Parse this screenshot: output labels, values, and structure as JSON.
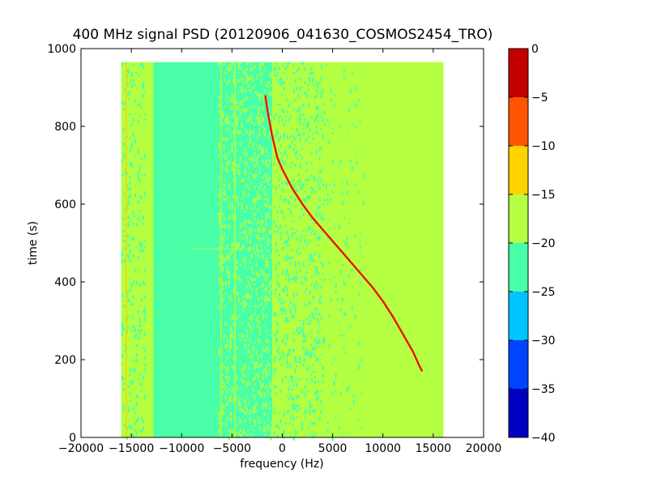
{
  "chart_data": {
    "type": "heatmap",
    "title": "400 MHz signal PSD (20120906_041630_COSMOS2454_TRO)",
    "xlabel": "frequency (Hz)",
    "ylabel": "time (s)",
    "xlim": [
      -20000,
      20000
    ],
    "ylim": [
      0,
      1000
    ],
    "xticks": [
      -20000,
      -15000,
      -10000,
      -5000,
      0,
      5000,
      10000,
      15000,
      20000
    ],
    "xtick_labels": [
      "−20000",
      "−15000",
      "−10000",
      "−5000",
      "0",
      "5000",
      "10000",
      "15000",
      "20000"
    ],
    "yticks": [
      0,
      200,
      400,
      600,
      800,
      1000
    ],
    "ytick_labels": [
      "0",
      "200",
      "400",
      "600",
      "800",
      "1000"
    ],
    "data_extent": {
      "x": [
        -16000,
        16000
      ],
      "y": [
        0,
        965
      ]
    },
    "background_level": -17.5,
    "regions": [
      {
        "x": [
          -16000,
          -13600
        ],
        "level": -17.5,
        "note": "speckled edge band"
      },
      {
        "x": [
          -13600,
          -12800
        ],
        "level": -20,
        "note": "transition"
      },
      {
        "x": [
          -12800,
          -6000
        ],
        "level": -22.5
      },
      {
        "x": [
          -6000,
          -1000
        ],
        "level": -22.5,
        "note": "speckled"
      },
      {
        "x": [
          -1000,
          4000
        ],
        "level": -17.5,
        "note": "speckled"
      },
      {
        "x": [
          4000,
          16000
        ],
        "level": -17.5
      }
    ],
    "vertical_lines": [
      {
        "x": -15500,
        "level": -12.5
      },
      {
        "x": -4700,
        "level": -17.5
      },
      {
        "x": -6100,
        "level": -17.5
      }
    ],
    "horizontal_feature": {
      "y": 485,
      "x": [
        -9000,
        -4000
      ],
      "level": -17.5
    },
    "signal_trace": {
      "level": -2.5,
      "points": [
        [
          -1700,
          880
        ],
        [
          -1400,
          830
        ],
        [
          -1000,
          775
        ],
        [
          -500,
          720
        ],
        [
          0,
          690
        ],
        [
          1000,
          640
        ],
        [
          2000,
          600
        ],
        [
          3000,
          565
        ],
        [
          4000,
          535
        ],
        [
          5000,
          505
        ],
        [
          6000,
          475
        ],
        [
          7000,
          445
        ],
        [
          8000,
          415
        ],
        [
          9000,
          385
        ],
        [
          10000,
          350
        ],
        [
          11000,
          310
        ],
        [
          12000,
          265
        ],
        [
          13000,
          220
        ],
        [
          13600,
          185
        ],
        [
          13900,
          170
        ]
      ]
    },
    "colorbar": {
      "min": -40,
      "max": 0,
      "ticks": [
        0,
        -5,
        -10,
        -15,
        -20,
        -25,
        -30,
        -35,
        -40
      ],
      "tick_labels": [
        "0",
        "−5",
        "−10",
        "−15",
        "−20",
        "−25",
        "−30",
        "−35",
        "−40"
      ],
      "bands": [
        {
          "from": -40,
          "to": -35,
          "color": "#0000c2"
        },
        {
          "from": -35,
          "to": -30,
          "color": "#0044ff"
        },
        {
          "from": -30,
          "to": -25,
          "color": "#00c4ff"
        },
        {
          "from": -25,
          "to": -20,
          "color": "#48ffa8"
        },
        {
          "from": -20,
          "to": -15,
          "color": "#b4ff42"
        },
        {
          "from": -15,
          "to": -10,
          "color": "#ffd200"
        },
        {
          "from": -10,
          "to": -5,
          "color": "#ff5500"
        },
        {
          "from": -5,
          "to": 0,
          "color": "#c40000"
        }
      ]
    }
  }
}
